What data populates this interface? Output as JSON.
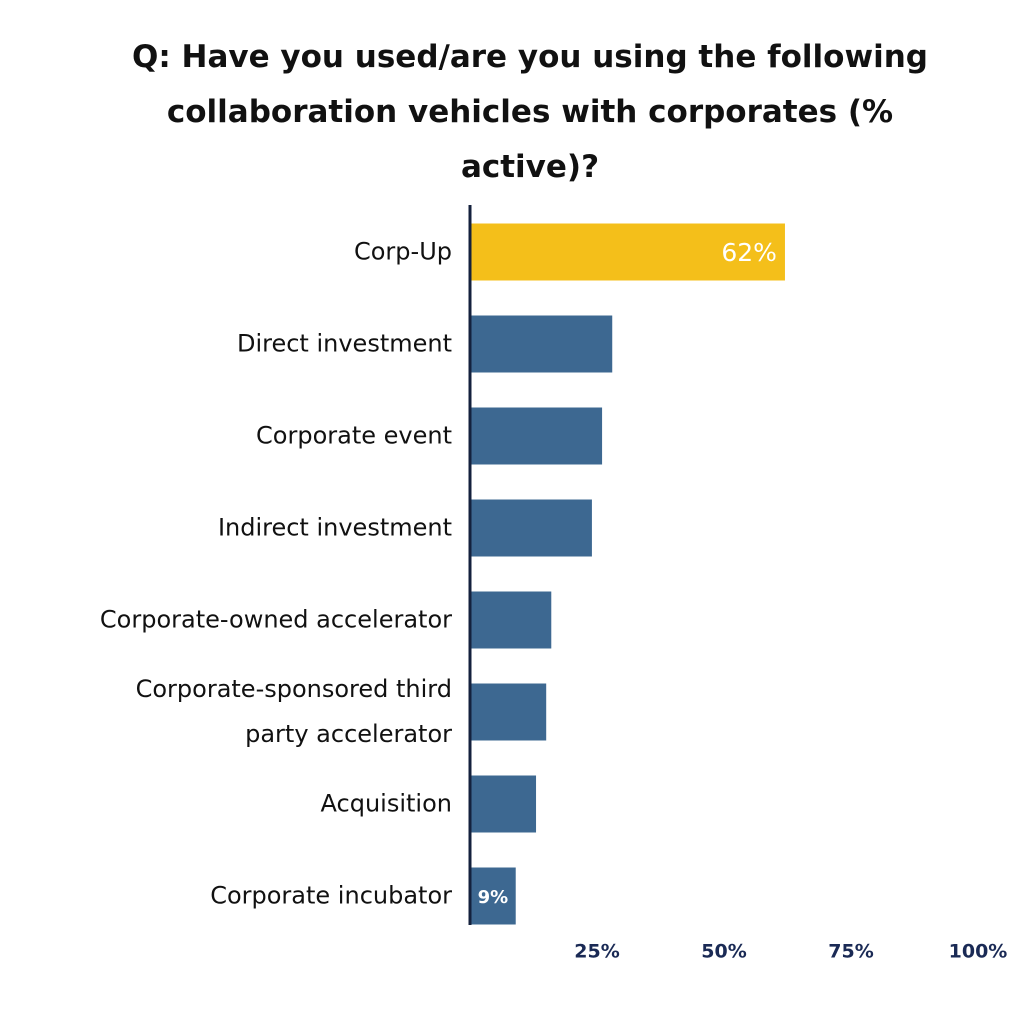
{
  "chart_data": {
    "type": "barh",
    "title": "Q: Have you used/are you using the following collaboration vehicles with corporates (% active)?",
    "categories": [
      "Corp-Up",
      "Direct investment",
      "Corporate event",
      "Indirect investment",
      "Corporate-owned accelerator",
      "Corporate-sponsored third\nparty accelerator",
      "Acquisition",
      "Corporate incubator"
    ],
    "values": [
      62,
      28,
      26,
      24,
      16,
      15,
      13,
      9
    ],
    "value_labels": [
      "62%",
      null,
      null,
      null,
      null,
      null,
      null,
      "9%"
    ],
    "colors": [
      "#f4bf1a",
      "#3d6891",
      "#3d6891",
      "#3d6891",
      "#3d6891",
      "#3d6891",
      "#3d6891",
      "#3d6891"
    ],
    "xlim": [
      0,
      100
    ],
    "xticks": [
      {
        "value": 25,
        "label": "25%"
      },
      {
        "value": 50,
        "label": "50%"
      },
      {
        "value": 75,
        "label": "75%"
      },
      {
        "value": 100,
        "label": "100%"
      }
    ],
    "grid": false
  }
}
